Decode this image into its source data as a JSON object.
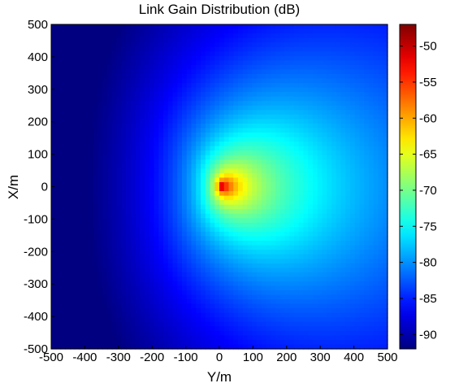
{
  "chart_data": {
    "type": "heatmap",
    "title": "Link Gain Distribution (dB)",
    "xlabel": "Y/m",
    "ylabel": "X/m",
    "xlim": [
      -500,
      500
    ],
    "ylim": [
      -500,
      500
    ],
    "x_ticks": [
      -500,
      -400,
      -300,
      -200,
      -100,
      0,
      100,
      200,
      300,
      400,
      500
    ],
    "y_ticks": [
      -500,
      -400,
      -300,
      -200,
      -100,
      0,
      100,
      200,
      300,
      400,
      500
    ],
    "colorbar": {
      "range": [
        -92,
        -47
      ],
      "ticks": [
        -50,
        -55,
        -60,
        -65,
        -70,
        -75,
        -80,
        -85,
        -90
      ],
      "colormap": "jet"
    },
    "source_position": [
      0,
      0
    ],
    "peak_gain_db": -47,
    "min_gain_db": -92,
    "description_of_field": "Directional gain pattern pointing toward +Y; highest gain near origin, decaying with distance; lowest values at negative Y"
  }
}
